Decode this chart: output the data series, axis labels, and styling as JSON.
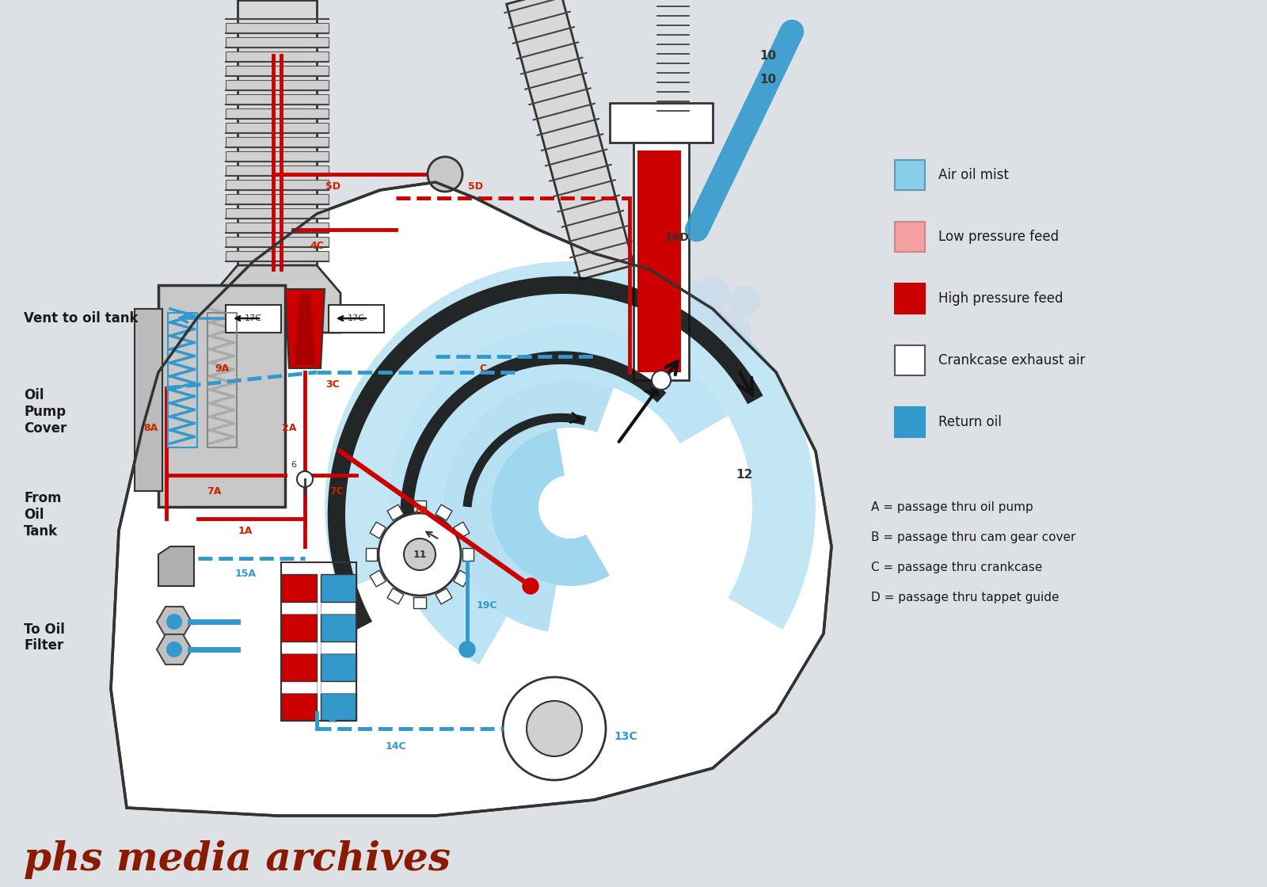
{
  "bg_color": "#dde0e5",
  "HP": "#CC0000",
  "LP": "#F4A0A0",
  "RO": "#3399CC",
  "AM": "#87CEEB",
  "BK": "#111111",
  "GR": "#888888",
  "legend_items": [
    {
      "label": "Air oil mist",
      "color": "#87CEEB",
      "edge": "#6699AA"
    },
    {
      "label": "Low pressure feed",
      "color": "#F4A0A0",
      "edge": "#CC8888"
    },
    {
      "label": "High pressure feed",
      "color": "#CC0000",
      "edge": "#CC0000"
    },
    {
      "label": "Crankcase exhaust air",
      "color": "#FFFFFF",
      "edge": "#555555"
    },
    {
      "label": "Return oil",
      "color": "#3399CC",
      "edge": "#3399CC"
    }
  ],
  "legend_keys": [
    "A = passage thru oil pump",
    "B = passage thru cam gear cover",
    "C = passage thru crankcase",
    "D = passage thru tappet guide"
  ],
  "watermark": "phs media archives",
  "watermark_color": "#8B1A00"
}
